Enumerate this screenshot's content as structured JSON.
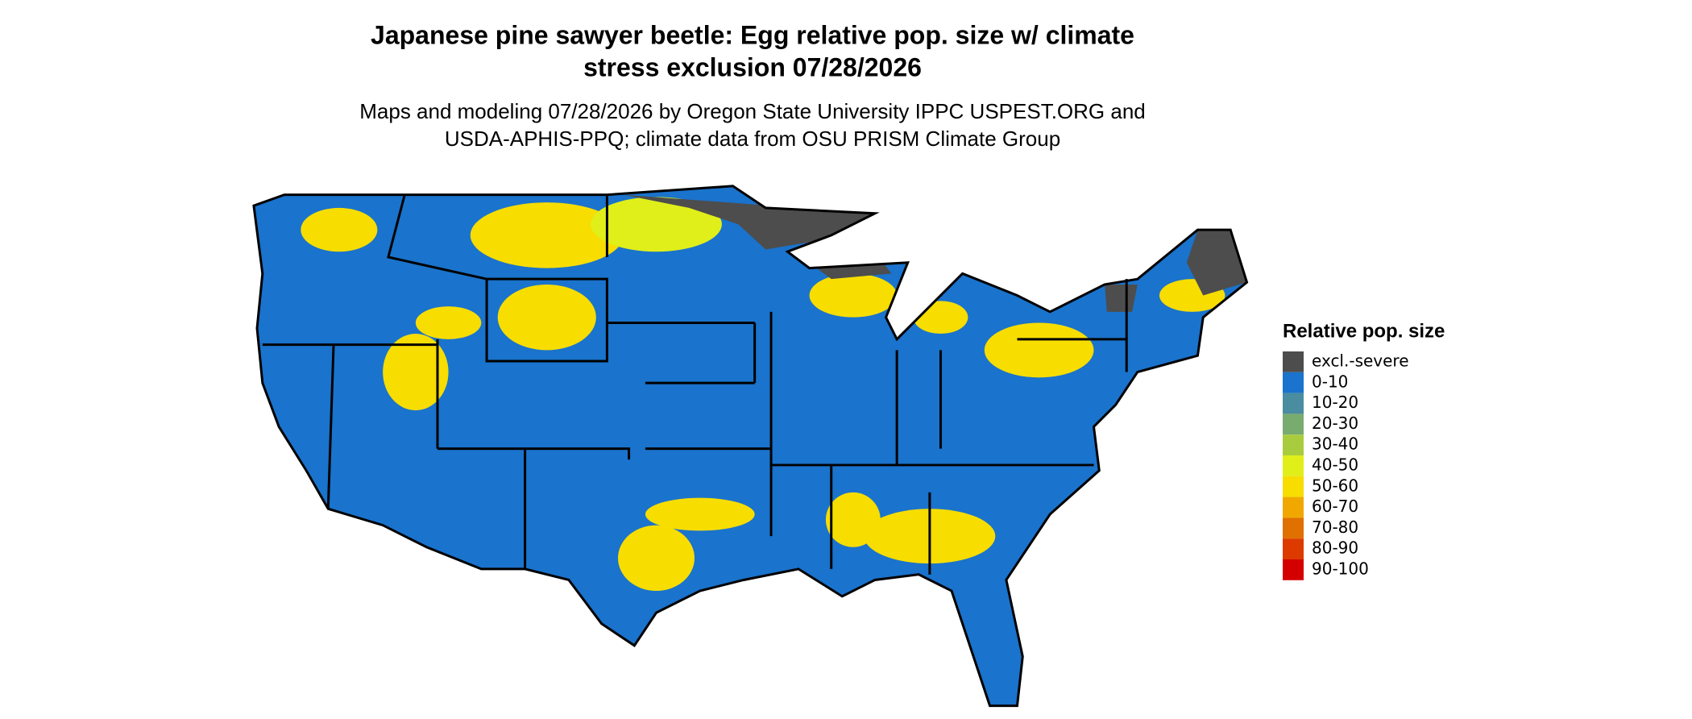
{
  "title": [
    "Japanese pine sawyer beetle: Egg relative pop. size w/ climate",
    "stress exclusion 07/28/2026"
  ],
  "subtitle": [
    "Maps and modeling 07/28/2026 by Oregon State University IPPC USPEST.ORG and",
    "USDA-APHIS-PPQ; climate data from OSU PRISM Climate Group"
  ],
  "legend": {
    "title": "Relative pop. size",
    "items": [
      {
        "label": "excl.-severe",
        "color": "#4d4d4d"
      },
      {
        "label": "0-10",
        "color": "#1a73cc"
      },
      {
        "label": "10-20",
        "color": "#4a8ca0"
      },
      {
        "label": "20-30",
        "color": "#78ab6e"
      },
      {
        "label": "30-40",
        "color": "#a9cc3f"
      },
      {
        "label": "40-50",
        "color": "#e0ef1a"
      },
      {
        "label": "50-60",
        "color": "#f7dd00"
      },
      {
        "label": "60-70",
        "color": "#f0a800"
      },
      {
        "label": "70-80",
        "color": "#e07000"
      },
      {
        "label": "80-90",
        "color": "#dd3a00"
      },
      {
        "label": "90-100",
        "color": "#d40000"
      }
    ]
  }
}
